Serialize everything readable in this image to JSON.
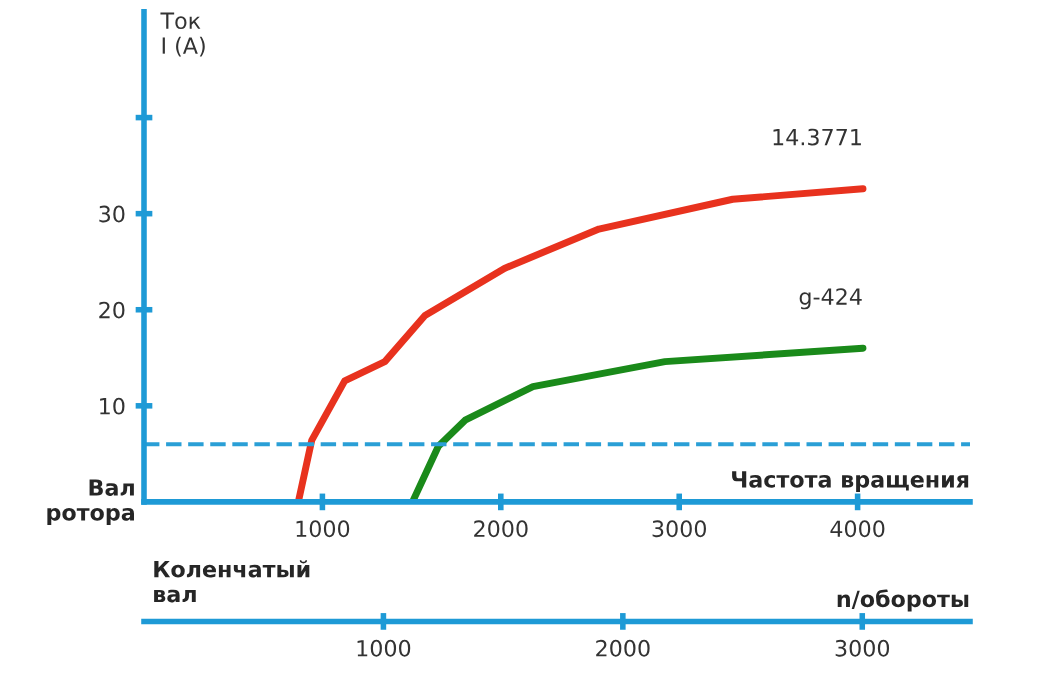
{
  "chart_data": {
    "type": "line",
    "ylabel": "Ток\nI (A)",
    "xlabel": "Частота вращения",
    "x2label": "n/обороты",
    "annotations": [
      "Вал ротора",
      "Коленчатый вал"
    ],
    "xlim": [
      0,
      4630
    ],
    "xticks": [
      1000,
      2000,
      3000,
      4000
    ],
    "x2lim": [
      0,
      3450
    ],
    "x2ticks": [
      1000,
      2000,
      3000
    ],
    "ylim": [
      0,
      51
    ],
    "yticks": [
      10,
      20,
      30,
      {
        "value": 40,
        "label": null
      }
    ],
    "grid": false,
    "marker": "none",
    "line_style": "solid",
    "ref_lines": [
      {
        "axis": "y",
        "value": 6,
        "label": null,
        "color": "#2a9fd6",
        "line_style": "dashed"
      }
    ],
    "series": [
      {
        "name": "14.3771",
        "color": "#e8321e",
        "x": [
          865,
          940,
          1125,
          1350,
          1575,
          2020,
          2550,
          3300,
          4030
        ],
        "values": [
          0,
          6.4,
          12.6,
          14.6,
          19.4,
          24.3,
          28.4,
          31.5,
          32.6
        ]
      },
      {
        "name": "g-424",
        "color": "#1a8a1a",
        "x": [
          1505,
          1650,
          1800,
          2180,
          2920,
          4030
        ],
        "values": [
          0,
          5.8,
          8.5,
          12,
          14.6,
          16
        ]
      }
    ]
  }
}
